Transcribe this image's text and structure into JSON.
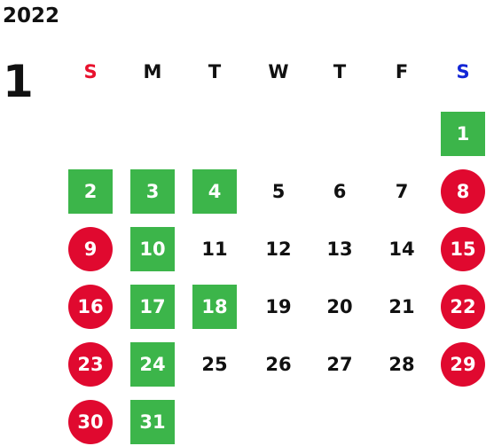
{
  "calendar": {
    "year": "2022",
    "month": "1",
    "weekdays": [
      "S",
      "M",
      "T",
      "W",
      "T",
      "F",
      "S"
    ],
    "weekday_colors": [
      "#e8112d",
      "#111111",
      "#111111",
      "#111111",
      "#111111",
      "#111111",
      "#1226d6"
    ],
    "colors": {
      "green": "#3cb54a",
      "red": "#e0092f"
    },
    "days": [
      {
        "day": "1",
        "style": "green"
      },
      {
        "day": "2",
        "style": "green"
      },
      {
        "day": "3",
        "style": "green"
      },
      {
        "day": "4",
        "style": "green"
      },
      {
        "day": "5",
        "style": "plain"
      },
      {
        "day": "6",
        "style": "plain"
      },
      {
        "day": "7",
        "style": "plain"
      },
      {
        "day": "8",
        "style": "red"
      },
      {
        "day": "9",
        "style": "red"
      },
      {
        "day": "10",
        "style": "green"
      },
      {
        "day": "11",
        "style": "plain"
      },
      {
        "day": "12",
        "style": "plain"
      },
      {
        "day": "13",
        "style": "plain"
      },
      {
        "day": "14",
        "style": "plain"
      },
      {
        "day": "15",
        "style": "red"
      },
      {
        "day": "16",
        "style": "red"
      },
      {
        "day": "17",
        "style": "green"
      },
      {
        "day": "18",
        "style": "green"
      },
      {
        "day": "19",
        "style": "plain"
      },
      {
        "day": "20",
        "style": "plain"
      },
      {
        "day": "21",
        "style": "plain"
      },
      {
        "day": "22",
        "style": "red"
      },
      {
        "day": "23",
        "style": "red"
      },
      {
        "day": "24",
        "style": "green"
      },
      {
        "day": "25",
        "style": "plain"
      },
      {
        "day": "26",
        "style": "plain"
      },
      {
        "day": "27",
        "style": "plain"
      },
      {
        "day": "28",
        "style": "plain"
      },
      {
        "day": "29",
        "style": "red"
      },
      {
        "day": "30",
        "style": "red"
      },
      {
        "day": "31",
        "style": "green"
      }
    ]
  }
}
